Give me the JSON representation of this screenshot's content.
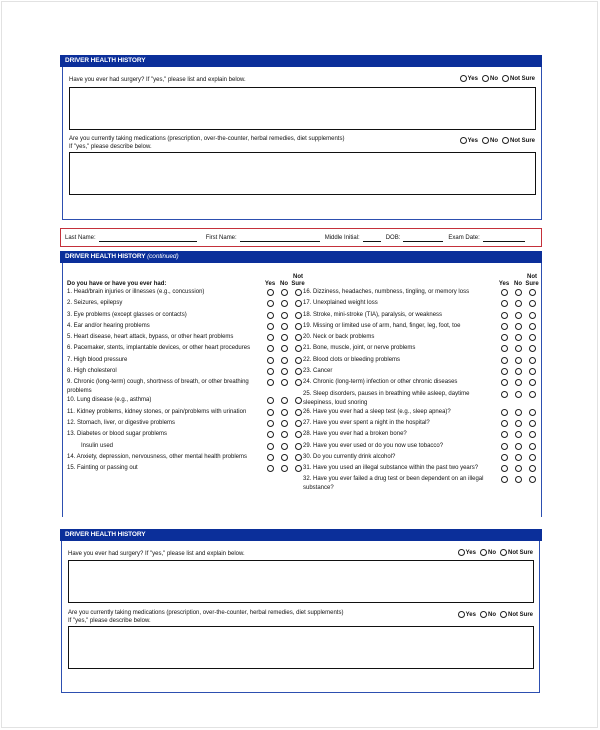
{
  "section1": {
    "title": "DRIVER HEALTH HISTORY",
    "q1": "Have you ever had surgery? If \"yes,\" please list and explain below.",
    "q2_line1": "Are you currently taking medications (prescription, over-the-counter, herbal remedies, diet supplements)",
    "q2_line2": "If \"yes,\" please describe below."
  },
  "options": {
    "yes": "Yes",
    "no": "No",
    "not_sure": "Not Sure"
  },
  "names": {
    "last": "Last Name:",
    "first": "First Name:",
    "middle": "Middle Initial:",
    "dob": "DOB:",
    "exam": "Exam Date:"
  },
  "section2": {
    "title": "DRIVER HEALTH HISTORY",
    "subtitle": "(continued)",
    "prompt": "Do you have or have you ever had:",
    "col_yes": "Yes",
    "col_no": "No",
    "col_not": "Not",
    "col_sure": "Sure",
    "left": [
      {
        "label": "1. Head/brain injuries or illnesses (e.g., concussion)"
      },
      {
        "label": "2. Seizures, epilepsy"
      },
      {
        "label": "3. Eye problems (except glasses or contacts)"
      },
      {
        "label": "4. Ear and/or hearing problems"
      },
      {
        "label": "5. Heart disease, heart attack, bypass, or other heart problems"
      },
      {
        "label": "6. Pacemaker, stents, implantable devices, or other heart procedures"
      },
      {
        "label": "7. High blood pressure"
      },
      {
        "label": "8. High cholesterol"
      },
      {
        "label": "9. Chronic (long-term) cough, shortness of breath, or other breathing problems"
      },
      {
        "label": "10. Lung disease (e.g., asthma)"
      },
      {
        "label": "11. Kidney problems, kidney stones, or pain/problems with urination"
      },
      {
        "label": "12. Stomach, liver, or digestive problems"
      },
      {
        "label": "13. Diabetes or blood sugar problems"
      },
      {
        "label": "Insulin used",
        "indent": true
      },
      {
        "label": "14. Anxiety, depression, nervousness, other mental health problems"
      },
      {
        "label": "15. Fainting or passing out"
      }
    ],
    "right": [
      {
        "label": "16. Dizziness, headaches, numbness, tingling, or memory loss"
      },
      {
        "label": "17. Unexplained weight loss"
      },
      {
        "label": "18. Stroke, mini-stroke (TIA), paralysis, or weakness"
      },
      {
        "label": "19. Missing or limited use of arm, hand, finger, leg, foot, toe"
      },
      {
        "label": "20. Neck or back problems"
      },
      {
        "label": "21. Bone, muscle, joint, or nerve problems"
      },
      {
        "label": "22. Blood clots or bleeding problems"
      },
      {
        "label": "23. Cancer"
      },
      {
        "label": "24. Chronic (long-term) infection or other chronic diseases"
      },
      {
        "label": "25. Sleep disorders, pauses in breathing while asleep, daytime sleepiness, loud snoring"
      },
      {
        "label": "26. Have you ever had a sleep test (e.g., sleep apnea)?"
      },
      {
        "label": "27. Have you ever spent a night in the hospital?"
      },
      {
        "label": "28. Have you ever had a broken bone?"
      },
      {
        "label": "29. Have you ever used or do you now use tobacco?"
      },
      {
        "label": "30. Do you currently drink alcohol?"
      },
      {
        "label": "31. Have you used an illegal substance within the past two years?"
      },
      {
        "label": "32. Have you ever failed a drug test or been dependent on an illegal substance?"
      }
    ]
  },
  "section3": {
    "title": "DRIVER HEALTH HISTORY",
    "q1": "Have you ever had surgery? If \"yes,\" please list and explain below.",
    "q2_line1": "Are you currently taking medications (prescription, over-the-counter, herbal remedies, diet supplements)",
    "q2_line2": "If \"yes,\" please describe below."
  },
  "colors": {
    "header": "#0b2f9a",
    "border": "#2d4fb0",
    "name_border": "#c4303a"
  }
}
